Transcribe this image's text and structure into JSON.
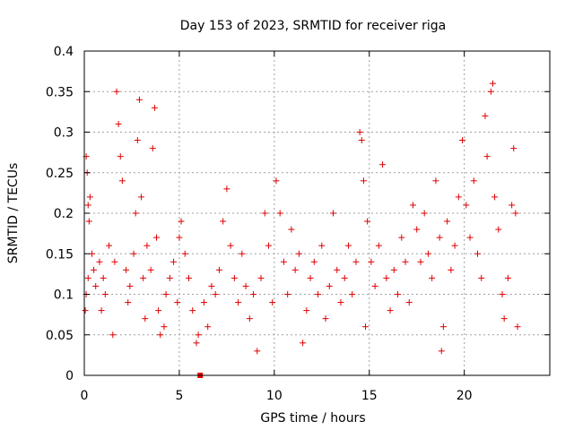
{
  "chart_data": {
    "type": "scatter",
    "title": "Day 153 of 2023, SRMTID for receiver riga",
    "xlabel": "GPS time / hours",
    "ylabel": "SRMTID / TECUs",
    "xlim": [
      0,
      24.5
    ],
    "ylim": [
      0,
      0.4
    ],
    "x_ticks": [
      0,
      5,
      10,
      15,
      20
    ],
    "x_tick_labels": [
      "0",
      "5",
      "10",
      "15",
      "20"
    ],
    "y_ticks": [
      0,
      0.05,
      0.1,
      0.15,
      0.2,
      0.25,
      0.3,
      0.35,
      0.4
    ],
    "y_tick_labels": [
      "0",
      "0.05",
      "0.1",
      "0.15",
      "0.2",
      "0.25",
      "0.3",
      "0.35",
      "0.4"
    ],
    "grid": true,
    "marker": "plus",
    "series_color": "#e00000",
    "gap_marker": {
      "x": 6.1,
      "y": 0
    },
    "series": [
      {
        "name": "SRMTID",
        "points": [
          [
            0.1,
            0.27
          ],
          [
            0.15,
            0.25
          ],
          [
            0.2,
            0.21
          ],
          [
            0.25,
            0.19
          ],
          [
            0.3,
            0.22
          ],
          [
            0.1,
            0.1
          ],
          [
            0.2,
            0.12
          ],
          [
            0.05,
            0.08
          ],
          [
            0.4,
            0.15
          ],
          [
            0.5,
            0.13
          ],
          [
            0.6,
            0.11
          ],
          [
            0.8,
            0.14
          ],
          [
            1.0,
            0.12
          ],
          [
            1.1,
            0.1
          ],
          [
            0.9,
            0.08
          ],
          [
            1.3,
            0.16
          ],
          [
            1.5,
            0.05
          ],
          [
            1.6,
            0.14
          ],
          [
            1.7,
            0.35
          ],
          [
            1.8,
            0.31
          ],
          [
            1.9,
            0.27
          ],
          [
            2.0,
            0.24
          ],
          [
            2.2,
            0.13
          ],
          [
            2.3,
            0.09
          ],
          [
            2.4,
            0.11
          ],
          [
            2.6,
            0.15
          ],
          [
            2.7,
            0.2
          ],
          [
            2.8,
            0.29
          ],
          [
            2.9,
            0.34
          ],
          [
            3.0,
            0.22
          ],
          [
            3.1,
            0.12
          ],
          [
            3.2,
            0.07
          ],
          [
            3.3,
            0.16
          ],
          [
            3.5,
            0.13
          ],
          [
            3.6,
            0.28
          ],
          [
            3.7,
            0.33
          ],
          [
            3.8,
            0.17
          ],
          [
            3.9,
            0.08
          ],
          [
            4.0,
            0.05
          ],
          [
            4.2,
            0.06
          ],
          [
            4.3,
            0.1
          ],
          [
            4.5,
            0.12
          ],
          [
            4.7,
            0.14
          ],
          [
            4.9,
            0.09
          ],
          [
            5.0,
            0.17
          ],
          [
            5.1,
            0.19
          ],
          [
            5.3,
            0.15
          ],
          [
            5.5,
            0.12
          ],
          [
            5.7,
            0.08
          ],
          [
            5.9,
            0.04
          ],
          [
            6.0,
            0.05
          ],
          [
            6.3,
            0.09
          ],
          [
            6.5,
            0.06
          ],
          [
            6.7,
            0.11
          ],
          [
            6.9,
            0.1
          ],
          [
            7.1,
            0.13
          ],
          [
            7.3,
            0.19
          ],
          [
            7.5,
            0.23
          ],
          [
            7.7,
            0.16
          ],
          [
            7.9,
            0.12
          ],
          [
            8.1,
            0.09
          ],
          [
            8.3,
            0.15
          ],
          [
            8.5,
            0.11
          ],
          [
            8.7,
            0.07
          ],
          [
            8.9,
            0.1
          ],
          [
            9.1,
            0.03
          ],
          [
            9.3,
            0.12
          ],
          [
            9.5,
            0.2
          ],
          [
            9.7,
            0.16
          ],
          [
            9.9,
            0.09
          ],
          [
            10.1,
            0.24
          ],
          [
            10.3,
            0.2
          ],
          [
            10.5,
            0.14
          ],
          [
            10.7,
            0.1
          ],
          [
            10.9,
            0.18
          ],
          [
            11.1,
            0.13
          ],
          [
            11.3,
            0.15
          ],
          [
            11.5,
            0.04
          ],
          [
            11.7,
            0.08
          ],
          [
            11.9,
            0.12
          ],
          [
            12.1,
            0.14
          ],
          [
            12.3,
            0.1
          ],
          [
            12.5,
            0.16
          ],
          [
            12.7,
            0.07
          ],
          [
            12.9,
            0.11
          ],
          [
            13.1,
            0.2
          ],
          [
            13.3,
            0.13
          ],
          [
            13.5,
            0.09
          ],
          [
            13.7,
            0.12
          ],
          [
            13.9,
            0.16
          ],
          [
            14.1,
            0.1
          ],
          [
            14.3,
            0.14
          ],
          [
            14.5,
            0.3
          ],
          [
            14.6,
            0.29
          ],
          [
            14.7,
            0.24
          ],
          [
            14.8,
            0.06
          ],
          [
            14.9,
            0.19
          ],
          [
            15.1,
            0.14
          ],
          [
            15.3,
            0.11
          ],
          [
            15.5,
            0.16
          ],
          [
            15.7,
            0.26
          ],
          [
            15.9,
            0.12
          ],
          [
            16.1,
            0.08
          ],
          [
            16.3,
            0.13
          ],
          [
            16.5,
            0.1
          ],
          [
            16.7,
            0.17
          ],
          [
            16.9,
            0.14
          ],
          [
            17.1,
            0.09
          ],
          [
            17.3,
            0.21
          ],
          [
            17.5,
            0.18
          ],
          [
            17.7,
            0.14
          ],
          [
            17.9,
            0.2
          ],
          [
            18.1,
            0.15
          ],
          [
            18.3,
            0.12
          ],
          [
            18.5,
            0.24
          ],
          [
            18.7,
            0.17
          ],
          [
            18.8,
            0.03
          ],
          [
            18.9,
            0.06
          ],
          [
            19.1,
            0.19
          ],
          [
            19.3,
            0.13
          ],
          [
            19.5,
            0.16
          ],
          [
            19.7,
            0.22
          ],
          [
            19.9,
            0.29
          ],
          [
            20.1,
            0.21
          ],
          [
            20.3,
            0.17
          ],
          [
            20.5,
            0.24
          ],
          [
            20.7,
            0.15
          ],
          [
            20.9,
            0.12
          ],
          [
            21.1,
            0.32
          ],
          [
            21.2,
            0.27
          ],
          [
            21.4,
            0.35
          ],
          [
            21.5,
            0.36
          ],
          [
            21.6,
            0.22
          ],
          [
            21.8,
            0.18
          ],
          [
            22.0,
            0.1
          ],
          [
            22.1,
            0.07
          ],
          [
            22.3,
            0.12
          ],
          [
            22.5,
            0.21
          ],
          [
            22.6,
            0.28
          ],
          [
            22.7,
            0.2
          ],
          [
            22.8,
            0.06
          ]
        ]
      }
    ]
  }
}
